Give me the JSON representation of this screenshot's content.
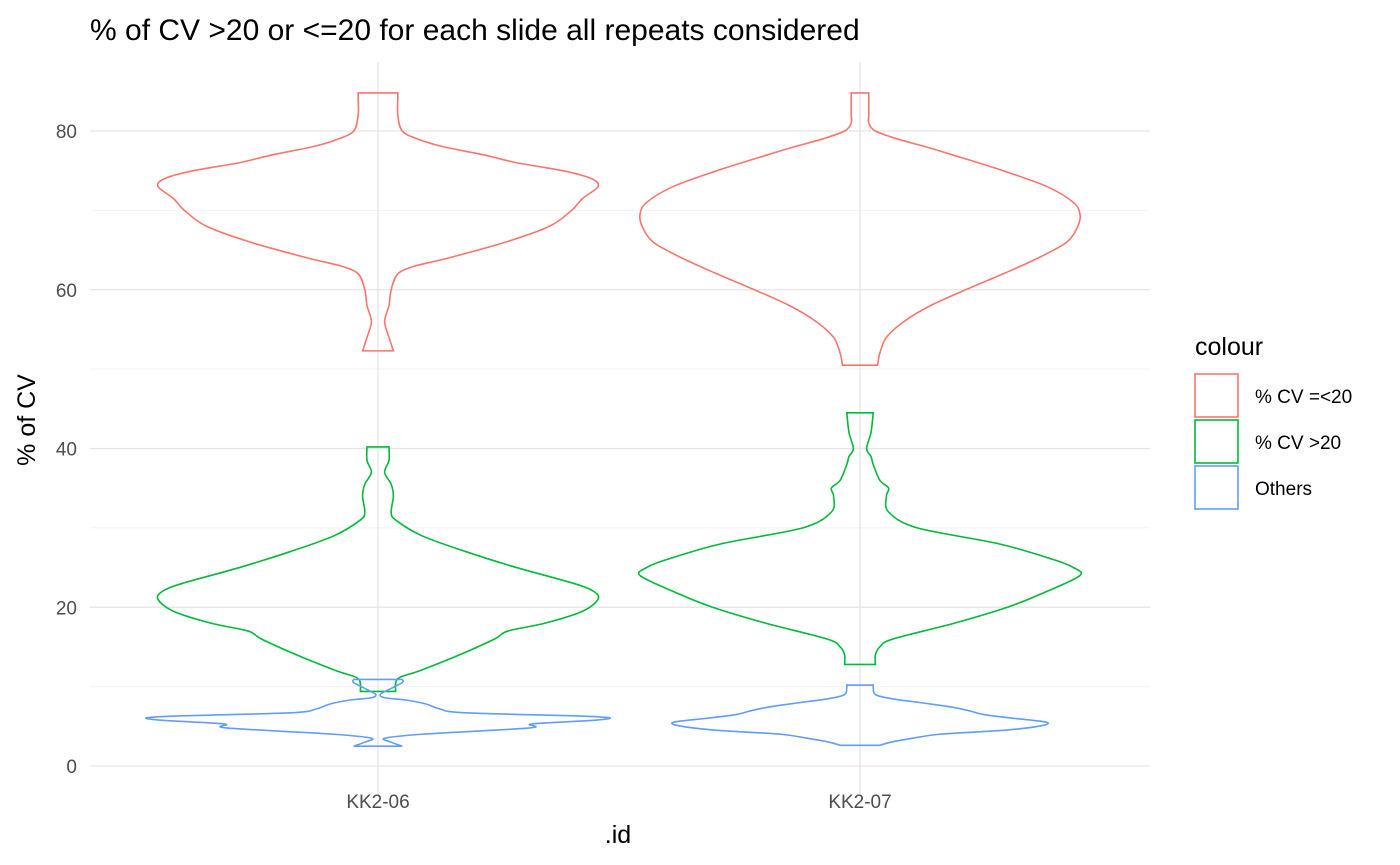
{
  "chart_data": {
    "type": "violin",
    "title": "% of CV >20 or <=20 for each slide all repeats considered",
    "xlabel": ".id",
    "ylabel": "% of CV",
    "categories": [
      "KK2-06",
      "KK2-07"
    ],
    "y_ticks": [
      0,
      20,
      40,
      60,
      80
    ],
    "ylim": [
      -1.5,
      89
    ],
    "grid": true,
    "legend": {
      "title": "colour",
      "placement": "right",
      "entries": [
        "% CV =<20",
        "% CV >20",
        "Others"
      ]
    },
    "series": [
      {
        "name": "% CV =<20",
        "color": "#F8766D",
        "violins": [
          {
            "category": "KK2-06",
            "min": 52.3,
            "max": 84.8,
            "profile": [
              [
                52.3,
                0.07
              ],
              [
                54.0,
                0.05
              ],
              [
                56.0,
                0.03
              ],
              [
                58.0,
                0.05
              ],
              [
                60.0,
                0.06
              ],
              [
                62.0,
                0.09
              ],
              [
                63.0,
                0.17
              ],
              [
                64.0,
                0.32
              ],
              [
                66.0,
                0.58
              ],
              [
                68.0,
                0.78
              ],
              [
                70.0,
                0.88
              ],
              [
                71.5,
                0.93
              ],
              [
                73.0,
                1.0
              ],
              [
                74.0,
                0.97
              ],
              [
                75.0,
                0.84
              ],
              [
                76.0,
                0.63
              ],
              [
                77.0,
                0.48
              ],
              [
                78.0,
                0.3
              ],
              [
                79.0,
                0.18
              ],
              [
                80.0,
                0.11
              ],
              [
                82.0,
                0.09
              ],
              [
                84.0,
                0.09
              ],
              [
                84.8,
                0.09
              ]
            ]
          },
          {
            "category": "KK2-07",
            "min": 50.5,
            "max": 84.8,
            "profile": [
              [
                50.5,
                0.08
              ],
              [
                52.0,
                0.09
              ],
              [
                54.0,
                0.12
              ],
              [
                56.0,
                0.2
              ],
              [
                58.0,
                0.32
              ],
              [
                60.0,
                0.48
              ],
              [
                62.0,
                0.65
              ],
              [
                64.0,
                0.81
              ],
              [
                66.0,
                0.94
              ],
              [
                68.0,
                0.99
              ],
              [
                69.5,
                1.0
              ],
              [
                71.0,
                0.97
              ],
              [
                73.0,
                0.85
              ],
              [
                75.0,
                0.65
              ],
              [
                77.0,
                0.42
              ],
              [
                78.0,
                0.3
              ],
              [
                79.0,
                0.17
              ],
              [
                80.0,
                0.07
              ],
              [
                81.0,
                0.04
              ],
              [
                82.0,
                0.04
              ],
              [
                84.0,
                0.04
              ],
              [
                84.8,
                0.04
              ]
            ]
          }
        ]
      },
      {
        "name": "% CV >20",
        "color": "#00BA38",
        "violins": [
          {
            "category": "KK2-06",
            "min": 9.4,
            "max": 40.2,
            "profile": [
              [
                9.4,
                0.08
              ],
              [
                11.0,
                0.09
              ],
              [
                12.0,
                0.19
              ],
              [
                14.0,
                0.37
              ],
              [
                16.0,
                0.53
              ],
              [
                17.0,
                0.59
              ],
              [
                18.0,
                0.76
              ],
              [
                19.5,
                0.93
              ],
              [
                21.0,
                1.0
              ],
              [
                22.0,
                0.98
              ],
              [
                23.0,
                0.89
              ],
              [
                25.0,
                0.63
              ],
              [
                27.0,
                0.4
              ],
              [
                29.0,
                0.2
              ],
              [
                31.0,
                0.08
              ],
              [
                32.0,
                0.06
              ],
              [
                34.0,
                0.07
              ],
              [
                35.5,
                0.06
              ],
              [
                37.0,
                0.03
              ],
              [
                38.5,
                0.05
              ],
              [
                40.2,
                0.05
              ]
            ]
          },
          {
            "category": "KK2-07",
            "min": 12.8,
            "max": 44.5,
            "profile": [
              [
                12.8,
                0.07
              ],
              [
                14.0,
                0.07
              ],
              [
                15.0,
                0.09
              ],
              [
                16.0,
                0.15
              ],
              [
                18.0,
                0.43
              ],
              [
                20.0,
                0.67
              ],
              [
                22.0,
                0.85
              ],
              [
                24.0,
                1.0
              ],
              [
                25.0,
                0.97
              ],
              [
                26.0,
                0.88
              ],
              [
                28.0,
                0.63
              ],
              [
                30.0,
                0.26
              ],
              [
                32.0,
                0.13
              ],
              [
                34.0,
                0.12
              ],
              [
                35.0,
                0.13
              ],
              [
                36.0,
                0.09
              ],
              [
                38.0,
                0.06
              ],
              [
                39.0,
                0.05
              ],
              [
                40.0,
                0.03
              ],
              [
                42.0,
                0.05
              ],
              [
                44.5,
                0.06
              ]
            ]
          }
        ]
      },
      {
        "name": "Others",
        "color": "#619CFF",
        "violins": [
          {
            "category": "KK2-06",
            "min": 2.5,
            "max": 10.9,
            "profile": [
              [
                2.5,
                0.11
              ],
              [
                3.0,
                0.06
              ],
              [
                3.5,
                0.03
              ],
              [
                4.0,
                0.2
              ],
              [
                4.8,
                0.69
              ],
              [
                5.3,
                0.7
              ],
              [
                5.8,
                1.0
              ],
              [
                6.2,
                1.0
              ],
              [
                6.7,
                0.4
              ],
              [
                7.2,
                0.28
              ],
              [
                7.8,
                0.22
              ],
              [
                8.3,
                0.13
              ],
              [
                8.6,
                0.03
              ],
              [
                9.0,
                0.01
              ],
              [
                9.5,
                0.04
              ],
              [
                10.5,
                0.11
              ],
              [
                10.9,
                0.11
              ]
            ]
          },
          {
            "category": "KK2-07",
            "min": 2.6,
            "max": 10.2,
            "profile": [
              [
                2.6,
                0.09
              ],
              [
                3.0,
                0.14
              ],
              [
                3.5,
                0.24
              ],
              [
                4.0,
                0.36
              ],
              [
                4.5,
                0.65
              ],
              [
                5.0,
                0.81
              ],
              [
                5.5,
                0.85
              ],
              [
                6.0,
                0.7
              ],
              [
                6.5,
                0.56
              ],
              [
                7.0,
                0.49
              ],
              [
                7.5,
                0.4
              ],
              [
                8.0,
                0.27
              ],
              [
                8.5,
                0.14
              ],
              [
                9.0,
                0.07
              ],
              [
                10.0,
                0.06
              ],
              [
                10.2,
                0.06
              ]
            ]
          }
        ]
      }
    ]
  }
}
